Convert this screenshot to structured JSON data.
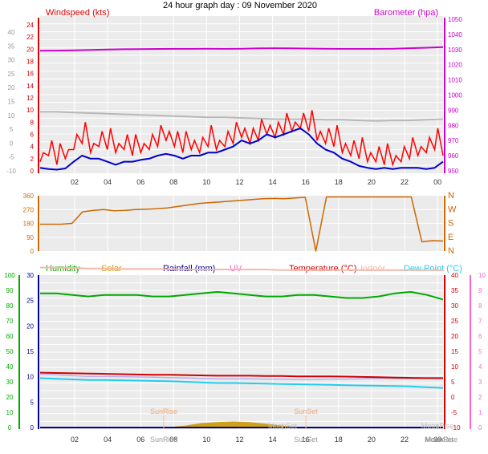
{
  "title": "24 hour graph day : 09 November 2020",
  "colors": {
    "background": "#ffffff",
    "plot_bg": "#ebebeb",
    "grid": "#ffffff",
    "windspeed_label": "#dd0000",
    "barometer": "#cc00cc",
    "wind_gust": "#ff0000",
    "wind_avg": "#0000cc",
    "gray_trace": "#b8b8b8",
    "direction": "#cc6600",
    "humidity": "#00aa00",
    "solar": "#cc9900",
    "rainfall": "#000099",
    "uv": "#ff66cc",
    "temperature": "#cc0000",
    "indoor": "#f4b8a8",
    "dew_point": "#22ccee",
    "lavender": "#bbaaee",
    "sun_marker": "#ffbb88",
    "moon_marker": "#c0c0c0"
  },
  "chart_data": [
    {
      "type": "line",
      "title": "",
      "left_axis_label": "Windspeed (kts)",
      "right_axis_label": "Barometer (hpa)",
      "x_ticks": [
        "02",
        "04",
        "06",
        "08",
        "10",
        "12",
        "14",
        "16",
        "18",
        "20",
        "22",
        "00"
      ],
      "y_outer_ticks": [
        "40",
        "35",
        "30",
        "25",
        "20",
        "15",
        "10",
        "5",
        "0",
        "-5",
        "-10"
      ],
      "y_inner_ticks": [
        "24",
        "22",
        "20",
        "18",
        "16",
        "14",
        "12",
        "10",
        "8",
        "6",
        "4",
        "2",
        "0"
      ],
      "ylim_wind": [
        0,
        24
      ],
      "y_right_ticks": [
        "1050",
        "1040",
        "1030",
        "1020",
        "1010",
        "1000",
        "990",
        "980",
        "970",
        "960",
        "950"
      ],
      "ylim_baro": [
        950,
        1050
      ],
      "series": [
        {
          "key": "baro",
          "values": [
            1029.2,
            1029.3,
            1029.5,
            1029.8,
            1030.0,
            1030.2,
            1030.3,
            1030.4,
            1030.5,
            1030.5,
            1030.6,
            1030.5,
            1030.6,
            1030.8,
            1030.9,
            1030.8,
            1030.7,
            1030.6,
            1030.5,
            1030.5,
            1030.5,
            1030.6,
            1030.9,
            1031.2,
            1031.6
          ]
        },
        {
          "key": "gray",
          "values": [
            9.7,
            9.7,
            9.6,
            9.5,
            9.4,
            9.3,
            9.2,
            9.1,
            9.0,
            8.9,
            8.8,
            8.8,
            8.7,
            8.6,
            8.5,
            8.5,
            8.5,
            8.4,
            8.4,
            8.3,
            8.2,
            8.3,
            8.3,
            8.4,
            8.5
          ]
        },
        {
          "key": "gust",
          "values": [
            1.5,
            2.5,
            1,
            2,
            3.5,
            4.5,
            3,
            4,
            3.5,
            3,
            3.5,
            2.5,
            3,
            3.5,
            4,
            5,
            4,
            3,
            3.5,
            3,
            4,
            3.5,
            4,
            4.5,
            5.5,
            4.5,
            5,
            6,
            5.5,
            6,
            6.5,
            7,
            6.5,
            5,
            4.5,
            4,
            3,
            2.5,
            2,
            1.5,
            1.5,
            1,
            1,
            1.5,
            2,
            2.5,
            3,
            3.5,
            2.5
          ]
        },
        {
          "key": "avg",
          "values": [
            0.5,
            0.3,
            0.2,
            0.4,
            1.5,
            2.5,
            2,
            2,
            1.5,
            1,
            1.5,
            1.5,
            1.8,
            2,
            2.5,
            2.8,
            2.5,
            2,
            2.5,
            2.5,
            3,
            3,
            3.5,
            4,
            5,
            4.5,
            5,
            6,
            5.5,
            6,
            6.5,
            7,
            6,
            4.5,
            3.5,
            3,
            2,
            1.5,
            0.8,
            0.5,
            0.3,
            0.5,
            0.3,
            0.5,
            0.5,
            0.5,
            0.3,
            0.5,
            1.5
          ]
        }
      ]
    },
    {
      "type": "line",
      "title": "",
      "x_ticks": [],
      "y_left_ticks": [
        "360",
        "270",
        "180",
        "90",
        "0"
      ],
      "ylim": [
        0,
        360
      ],
      "y_right_labels": [
        "N",
        "W",
        "S",
        "E",
        "N"
      ],
      "series": [
        {
          "key": "direction",
          "values": [
            175,
            175,
            175,
            180,
            255,
            265,
            270,
            262,
            265,
            270,
            272,
            275,
            280,
            290,
            300,
            310,
            315,
            320,
            325,
            330,
            335,
            340,
            342,
            340,
            345,
            350,
            0,
            352,
            352,
            352,
            352,
            352,
            352,
            352,
            352,
            352,
            60,
            68,
            65
          ]
        }
      ]
    },
    {
      "type": "line",
      "title": "",
      "legend": [
        "Humidity",
        "Solar",
        "Rainfall (mm)",
        "UV",
        "Temperature (°C)",
        "Indoor",
        "Dew Point (°C)"
      ],
      "x_ticks": [
        "02",
        "04",
        "06",
        "08",
        "10",
        "12",
        "14",
        "16",
        "18",
        "20",
        "22",
        "00"
      ],
      "y_outer_ticks": [
        "100",
        "90",
        "80",
        "70",
        "60",
        "50",
        "40",
        "30",
        "20",
        "10",
        "0"
      ],
      "ylim_outer": [
        0,
        100
      ],
      "y_inner_ticks": [
        "30",
        "25",
        "20",
        "15",
        "10",
        "5",
        "0"
      ],
      "ylim_inner": [
        0,
        30
      ],
      "y_right_ticks": [
        "40",
        "35",
        "30",
        "25",
        "20",
        "15",
        "10",
        "5",
        "0",
        "-5",
        "-10"
      ],
      "ylim_temp": [
        -10,
        40
      ],
      "y_right2_ticks": [
        "10",
        "9",
        "8",
        "7",
        "6",
        "5",
        "4",
        "3",
        "2",
        "1",
        "0"
      ],
      "ylim_uv": [
        0,
        10
      ],
      "annotations": {
        "sunrise_top": "SunRise",
        "sunset_top": "SunSet",
        "sunrise_bottom": "SunRise",
        "sunset_bottom": "SunSet",
        "moonrise_bottom": "MoonRise",
        "moonset_top": "MoonSet",
        "moonset_bottom": "MoonSet",
        "moonrise_top": "MoonRise",
        "moonrise_bottom2": "MoonRise"
      },
      "series": [
        {
          "key": "humidity",
          "values": [
            88,
            88,
            87,
            86,
            87,
            87,
            87,
            86,
            86,
            87,
            88,
            89,
            88,
            87,
            86,
            86,
            87,
            87,
            86,
            85,
            85,
            86,
            88,
            89,
            87,
            84
          ]
        },
        {
          "key": "indoor",
          "values": [
            31.5,
            31.5,
            31.4,
            31.3,
            31.3,
            31.2,
            31.2,
            31.2,
            31.2,
            31.1,
            31.1,
            31.1,
            31.1,
            31.1,
            31.1,
            31.0,
            31.0,
            31.0,
            31.0,
            31.0,
            31.0,
            31.0,
            31.0,
            31.0,
            31.0,
            31.0
          ]
        },
        {
          "key": "temperature",
          "values": [
            8.0,
            7.9,
            7.8,
            7.7,
            7.6,
            7.5,
            7.4,
            7.3,
            7.3,
            7.2,
            7.1,
            7.0,
            7.0,
            7.0,
            6.9,
            6.9,
            6.8,
            6.8,
            6.8,
            6.7,
            6.6,
            6.5,
            6.4,
            6.3,
            6.2,
            6.2
          ]
        },
        {
          "key": "lavender",
          "values": [
            7.4,
            7.3,
            7.0,
            6.8,
            6.8,
            6.7,
            6.6,
            6.5,
            6.4,
            6.3,
            6.1,
            6.0,
            6.0,
            6.0,
            5.9,
            5.9,
            5.8,
            5.8,
            5.9,
            5.9,
            6.0,
            6.1,
            6.1,
            6.1,
            6.1,
            6.1
          ]
        },
        {
          "key": "dew",
          "values": [
            6.2,
            6.0,
            5.8,
            5.6,
            5.6,
            5.5,
            5.4,
            5.3,
            5.2,
            5.0,
            4.8,
            4.6,
            4.6,
            4.5,
            4.4,
            4.3,
            4.2,
            4.1,
            4.0,
            3.9,
            3.8,
            3.7,
            3.6,
            3.5,
            3.2,
            3.0
          ]
        },
        {
          "key": "solar",
          "values": [
            0,
            0,
            0,
            0,
            0,
            0,
            0,
            0,
            0,
            0.3,
            0.8,
            1.0,
            1.1,
            1.0,
            0.7,
            0.3,
            0,
            0,
            0,
            0,
            0,
            0,
            0,
            0,
            0,
            0
          ]
        }
      ]
    }
  ]
}
